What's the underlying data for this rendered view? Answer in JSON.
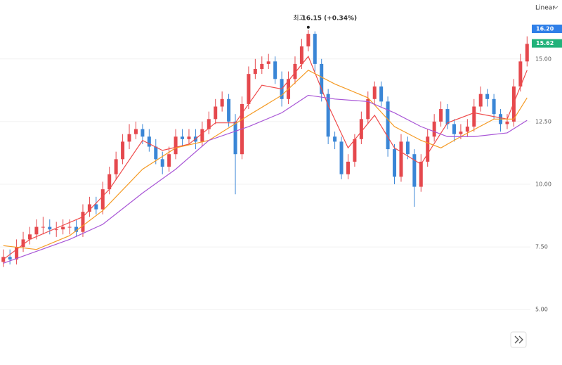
{
  "chart_data": {
    "type": "candlestick",
    "scale_label": "Linear",
    "ylim": [
      2.79,
      17.35
    ],
    "yticks": [
      {
        "value": 5,
        "label": "5.00"
      },
      {
        "value": 7.5,
        "label": "7.50"
      },
      {
        "value": 10,
        "label": "10.00"
      },
      {
        "value": 12.5,
        "label": "12.50"
      },
      {
        "value": 15,
        "label": "15.00"
      }
    ],
    "grid": true,
    "up_color": "#e5484d",
    "down_color": "#3a86d6",
    "open": [
      6.9,
      7.1,
      7.0,
      7.5,
      7.8,
      8.0,
      8.3,
      8.3,
      8.2,
      8.2,
      8.3,
      8.3,
      8.1,
      8.9,
      9.2,
      9.0,
      9.8,
      10.4,
      11.0,
      11.7,
      12.0,
      12.2,
      11.9,
      11.5,
      11.0,
      10.7,
      11.2,
      11.9,
      11.8,
      11.9,
      11.7,
      12.2,
      12.6,
      13.1,
      13.4,
      12.5,
      11.2,
      13.2,
      14.4,
      14.6,
      14.8,
      14.9,
      14.2,
      13.4,
      14.2,
      14.8,
      15.5,
      16.0,
      14.8,
      13.6,
      11.9,
      11.7,
      10.4,
      10.9,
      11.8,
      12.6,
      13.4,
      13.9,
      13.3,
      11.4,
      10.3,
      11.7,
      11.2,
      9.9,
      10.9,
      11.9,
      12.5,
      13.0,
      12.4,
      12.0,
      12.1,
      12.3,
      13.1,
      13.6,
      13.4,
      12.8,
      12.4,
      12.5,
      13.9,
      14.9
    ],
    "high": [
      7.4,
      7.4,
      7.8,
      8.1,
      8.3,
      8.6,
      8.7,
      8.6,
      8.5,
      8.6,
      8.6,
      8.6,
      9.2,
      9.5,
      9.5,
      10.1,
      10.7,
      11.3,
      12.0,
      12.4,
      12.5,
      12.4,
      12.2,
      11.8,
      11.3,
      11.5,
      12.2,
      12.2,
      12.2,
      12.2,
      12.5,
      12.9,
      13.4,
      13.7,
      13.6,
      12.8,
      13.5,
      14.7,
      15.0,
      15.1,
      15.2,
      15.1,
      14.5,
      14.5,
      15.1,
      15.8,
      16.15,
      16.1,
      15.0,
      13.8,
      12.1,
      11.9,
      11.2,
      12.0,
      12.9,
      13.7,
      14.1,
      14.1,
      13.5,
      11.6,
      12.0,
      11.9,
      11.4,
      11.2,
      12.2,
      12.8,
      13.3,
      13.2,
      12.6,
      12.4,
      12.6,
      13.4,
      13.9,
      13.8,
      13.6,
      13.0,
      12.8,
      14.2,
      15.2,
      15.9
    ],
    "low": [
      6.7,
      6.8,
      6.8,
      7.3,
      7.6,
      7.8,
      8.0,
      8.0,
      7.9,
      8.0,
      8.0,
      7.9,
      7.9,
      8.7,
      8.8,
      8.8,
      9.6,
      10.2,
      10.8,
      11.4,
      11.8,
      11.6,
      11.3,
      10.8,
      10.4,
      10.5,
      11.0,
      11.5,
      11.6,
      11.4,
      11.5,
      12.0,
      12.4,
      12.9,
      12.3,
      9.6,
      11.0,
      13.0,
      14.2,
      14.4,
      14.6,
      14.0,
      13.1,
      13.2,
      14.0,
      14.6,
      15.3,
      14.5,
      13.3,
      11.6,
      11.4,
      10.2,
      10.2,
      10.7,
      11.6,
      12.4,
      13.2,
      13.1,
      11.1,
      10.0,
      10.1,
      11.0,
      9.1,
      9.7,
      10.7,
      11.7,
      12.3,
      12.2,
      11.7,
      11.8,
      11.9,
      12.1,
      12.9,
      13.1,
      12.6,
      12.1,
      12.2,
      12.3,
      13.7,
      14.7
    ],
    "close": [
      7.1,
      7.0,
      7.5,
      7.8,
      8.0,
      8.3,
      8.3,
      8.2,
      8.2,
      8.3,
      8.3,
      8.1,
      8.9,
      9.2,
      9.0,
      9.8,
      10.4,
      11.0,
      11.7,
      12.0,
      12.2,
      11.9,
      11.5,
      11.0,
      10.7,
      11.2,
      11.9,
      11.8,
      11.9,
      11.7,
      12.2,
      12.6,
      13.1,
      13.4,
      12.5,
      11.2,
      13.2,
      14.4,
      14.6,
      14.8,
      14.9,
      14.2,
      13.4,
      14.2,
      14.8,
      15.5,
      16.0,
      14.8,
      13.6,
      11.9,
      11.7,
      10.4,
      10.9,
      11.8,
      12.6,
      13.4,
      13.9,
      13.3,
      11.4,
      10.3,
      11.7,
      11.2,
      9.9,
      10.9,
      11.9,
      12.5,
      13.0,
      12.4,
      12.0,
      12.1,
      12.3,
      13.1,
      13.6,
      13.4,
      12.8,
      12.4,
      12.5,
      13.9,
      14.9,
      15.6
    ],
    "series": [
      {
        "color": "#ef4b4b",
        "x": [
          0,
          4,
          8,
          12,
          16,
          21,
          24,
          28,
          32,
          35,
          39,
          42,
          46,
          49,
          52,
          56,
          59,
          63,
          67,
          71,
          76,
          79
        ],
        "values": [
          7.0,
          7.8,
          8.25,
          8.7,
          9.8,
          11.75,
          11.35,
          11.6,
          12.45,
          12.45,
          13.95,
          13.8,
          15.1,
          13.15,
          11.45,
          12.75,
          11.45,
          10.8,
          12.45,
          12.85,
          12.6,
          14.55
        ]
      },
      {
        "color": "#f59a23",
        "x": [
          0,
          5,
          10,
          15,
          21,
          26,
          31,
          37,
          42,
          46,
          50,
          55,
          59,
          63,
          66,
          69,
          74,
          77,
          79
        ],
        "values": [
          7.55,
          7.4,
          7.95,
          8.95,
          10.6,
          11.45,
          11.75,
          12.75,
          13.55,
          14.55,
          14.0,
          13.45,
          12.3,
          11.75,
          11.45,
          11.9,
          12.6,
          12.6,
          13.45
        ]
      },
      {
        "color": "#a855d6",
        "x": [
          0,
          10,
          15,
          21,
          26,
          31,
          37,
          42,
          46,
          50,
          55,
          59,
          63,
          67,
          71,
          76,
          79
        ],
        "values": [
          6.85,
          7.8,
          8.4,
          9.65,
          10.6,
          11.75,
          12.3,
          12.85,
          13.55,
          13.4,
          13.3,
          12.85,
          12.3,
          11.9,
          11.9,
          12.05,
          12.55
        ]
      }
    ],
    "high_annotation": {
      "label": "최고",
      "text": "16.15 (+0.34%)",
      "value": 16.15,
      "x": 46
    },
    "price_tags": [
      {
        "value": 16.2,
        "label": "16.20",
        "color": "#2f7fe8"
      },
      {
        "value": 15.62,
        "label": "15.62",
        "color": "#21b27a"
      }
    ]
  }
}
